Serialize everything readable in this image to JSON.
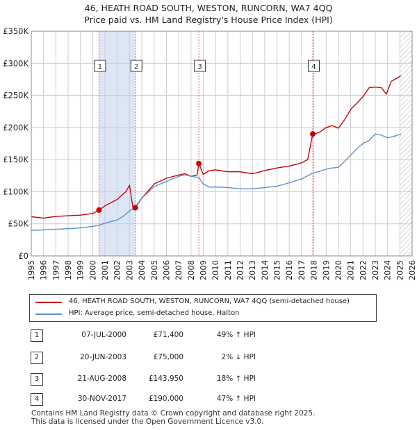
{
  "title_line1": "46, HEATH ROAD SOUTH, WESTON, RUNCORN, WA7 4QQ",
  "title_line2": "Price paid vs. HM Land Registry's House Price Index (HPI)",
  "colors": {
    "property": "#cc0000",
    "hpi": "#5b8fd0",
    "shade": "#dce6f5",
    "grid": "#cccccc",
    "vline": "#e06060"
  },
  "legend": {
    "property_label": "46, HEATH ROAD SOUTH, WESTON, RUNCORN, WA7 4QQ (semi-detached house)",
    "hpi_label": "HPI: Average price, semi-detached house, Halton"
  },
  "sales": [
    {
      "num": "1",
      "date": "07-JUL-2000",
      "price": "£71,400",
      "hpi": "49% ↑ HPI"
    },
    {
      "num": "2",
      "date": "20-JUN-2003",
      "price": "£75,000",
      "hpi": "2% ↓ HPI"
    },
    {
      "num": "3",
      "date": "21-AUG-2008",
      "price": "£143,950",
      "hpi": "18% ↑ HPI"
    },
    {
      "num": "4",
      "date": "30-NOV-2017",
      "price": "£190,000",
      "hpi": "47% ↑ HPI"
    }
  ],
  "footer_line1": "Contains HM Land Registry data © Crown copyright and database right 2025.",
  "footer_line2": "This data is licensed under the Open Government Licence v3.0.",
  "chart_data": {
    "type": "line",
    "title": "46, HEATH ROAD SOUTH, WESTON, RUNCORN, WA7 4QQ — Price paid vs. HM Land Registry's House Price Index (HPI)",
    "xlim": [
      1995,
      2026
    ],
    "ylim": [
      0,
      350000
    ],
    "x_ticks": [
      1995,
      1996,
      1997,
      1998,
      1999,
      2000,
      2001,
      2002,
      2003,
      2004,
      2005,
      2006,
      2007,
      2008,
      2009,
      2010,
      2011,
      2012,
      2013,
      2014,
      2015,
      2016,
      2017,
      2018,
      2019,
      2020,
      2021,
      2022,
      2023,
      2024,
      2025,
      2026
    ],
    "y_ticks": [
      {
        "value": 0,
        "label": "£0"
      },
      {
        "value": 50000,
        "label": "£50K"
      },
      {
        "value": 100000,
        "label": "£100K"
      },
      {
        "value": 150000,
        "label": "£150K"
      },
      {
        "value": 200000,
        "label": "£200K"
      },
      {
        "value": 250000,
        "label": "£250K"
      },
      {
        "value": 300000,
        "label": "£300K"
      },
      {
        "value": 350000,
        "label": "£350K"
      }
    ],
    "shaded_ranges": [
      [
        2000.51,
        2003.47
      ]
    ],
    "future_hatch_from": 2025.0,
    "sale_markers": [
      {
        "label": "1",
        "x": 2000.51,
        "y": 71400
      },
      {
        "label": "2",
        "x": 2003.47,
        "y": 75000
      },
      {
        "label": "3",
        "x": 2008.64,
        "y": 143950
      },
      {
        "label": "4",
        "x": 2017.91,
        "y": 190000
      }
    ],
    "series": [
      {
        "name": "46, HEATH ROAD SOUTH, WESTON, RUNCORN, WA7 4QQ (semi-detached house)",
        "x": [
          1995.0,
          1996.0,
          1997.0,
          1998.0,
          1999.0,
          2000.0,
          2000.51,
          2001.0,
          2002.0,
          2002.7,
          2003.0,
          2003.3,
          2003.47,
          2004.0,
          2005.0,
          2006.0,
          2007.0,
          2007.5,
          2008.0,
          2008.5,
          2008.64,
          2009.0,
          2009.5,
          2010.0,
          2011.0,
          2012.0,
          2013.0,
          2014.0,
          2015.0,
          2016.0,
          2017.0,
          2017.5,
          2017.91,
          2018.1,
          2018.5,
          2019.0,
          2019.5,
          2020.0,
          2020.5,
          2021.0,
          2021.5,
          2022.0,
          2022.5,
          2023.0,
          2023.5,
          2023.9,
          2024.3,
          2024.7,
          2025.1
        ],
        "values": [
          61000,
          59000,
          61500,
          62500,
          63500,
          66000,
          71400,
          78000,
          88000,
          100000,
          110000,
          72000,
          75000,
          90000,
          112000,
          121000,
          126000,
          128000,
          124000,
          126000,
          143950,
          127000,
          133000,
          134000,
          131000,
          131000,
          128000,
          133000,
          137000,
          140000,
          145000,
          150000,
          190000,
          190000,
          193000,
          200000,
          203000,
          199000,
          212000,
          228000,
          238000,
          248000,
          262000,
          263000,
          262000,
          252000,
          272000,
          276000,
          281000
        ]
      },
      {
        "name": "HPI: Average price, semi-detached house, Halton",
        "x": [
          1995.0,
          1996.0,
          1997.0,
          1998.0,
          1999.0,
          2000.0,
          2000.51,
          2001.0,
          2002.0,
          2002.5,
          2003.0,
          2003.47,
          2004.0,
          2005.0,
          2006.0,
          2007.0,
          2007.5,
          2008.0,
          2008.64,
          2009.0,
          2009.5,
          2010.0,
          2011.0,
          2012.0,
          2013.0,
          2014.0,
          2015.0,
          2016.0,
          2017.0,
          2017.91,
          2018.5,
          2019.0,
          2019.5,
          2020.0,
          2020.5,
          2021.0,
          2021.5,
          2022.0,
          2022.5,
          2023.0,
          2023.5,
          2024.0,
          2024.5,
          2025.1
        ],
        "values": [
          40000,
          40500,
          41500,
          42500,
          43500,
          46000,
          48000,
          51000,
          56000,
          62000,
          70000,
          76500,
          90000,
          108000,
          116000,
          124000,
          126500,
          124000,
          122000,
          112000,
          107000,
          107500,
          106500,
          104500,
          104500,
          106500,
          108500,
          114000,
          120000,
          129000,
          132000,
          135000,
          137000,
          138000,
          147000,
          157000,
          167000,
          175000,
          180000,
          190000,
          188000,
          184000,
          186000,
          190000
        ]
      }
    ]
  }
}
